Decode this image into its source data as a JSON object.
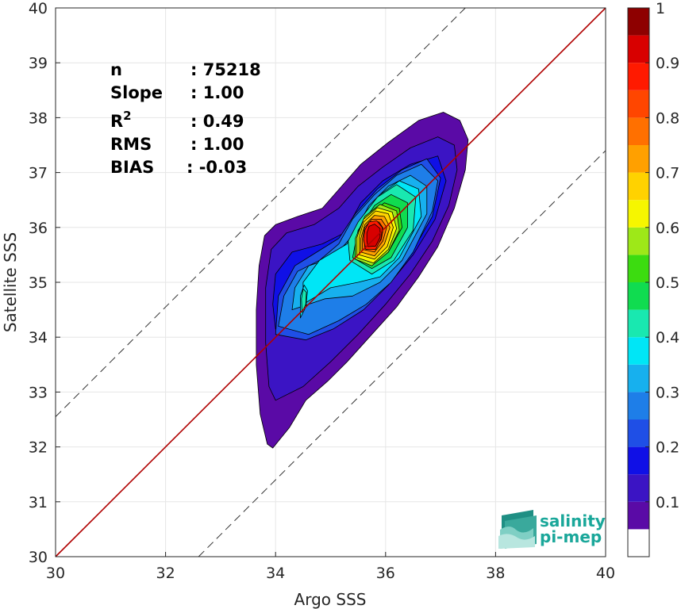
{
  "chart_data": {
    "type": "heatmap",
    "subtype": "filled-contour density scatter",
    "xlabel": "Argo SSS",
    "ylabel": "Satellite SSS",
    "xlim": [
      30,
      40
    ],
    "ylim": [
      30,
      40
    ],
    "xticks": [
      30,
      32,
      34,
      36,
      38,
      40
    ],
    "yticks": [
      30,
      31,
      32,
      33,
      34,
      35,
      36,
      37,
      38,
      39,
      40
    ],
    "grid": true,
    "one_to_one_line": {
      "color": "#b00000",
      "from": [
        30,
        30
      ],
      "to": [
        40,
        40
      ]
    },
    "dashed_offset_lines": [
      {
        "from": [
          30,
          32.55
        ],
        "to": [
          37.45,
          40
        ]
      },
      {
        "from": [
          32.6,
          30
        ],
        "to": [
          40,
          37.4
        ]
      }
    ],
    "stats": [
      {
        "label": "n",
        "value": ": 75218"
      },
      {
        "label": "Slope",
        "value": ": 1.00"
      },
      {
        "label": "R",
        "sup": "2",
        "value": ": 0.49"
      },
      {
        "label": "RMS",
        "value": ": 1.00"
      },
      {
        "label": "BIAS",
        "value": ": -0.03"
      }
    ],
    "colorbar": {
      "ticks": [
        "0.1",
        "0.2",
        "0.3",
        "0.4",
        "0.5",
        "0.6",
        "0.7",
        "0.8",
        "0.9",
        "1"
      ],
      "levels": [
        {
          "from": 0.0,
          "to": 0.05,
          "color": "#ffffff"
        },
        {
          "from": 0.05,
          "to": 0.1,
          "color": "#5a0aa6"
        },
        {
          "from": 0.1,
          "to": 0.15,
          "color": "#3b14c4"
        },
        {
          "from": 0.15,
          "to": 0.2,
          "color": "#1010e6"
        },
        {
          "from": 0.2,
          "to": 0.25,
          "color": "#1f4fe6"
        },
        {
          "from": 0.25,
          "to": 0.3,
          "color": "#1e7ee8"
        },
        {
          "from": 0.3,
          "to": 0.35,
          "color": "#17b0ee"
        },
        {
          "from": 0.35,
          "to": 0.4,
          "color": "#00e6f6"
        },
        {
          "from": 0.4,
          "to": 0.45,
          "color": "#19e8b0"
        },
        {
          "from": 0.45,
          "to": 0.5,
          "color": "#10dc50"
        },
        {
          "from": 0.5,
          "to": 0.55,
          "color": "#3cdc10"
        },
        {
          "from": 0.55,
          "to": 0.6,
          "color": "#9ee818"
        },
        {
          "from": 0.6,
          "to": 0.65,
          "color": "#f6f600"
        },
        {
          "from": 0.65,
          "to": 0.7,
          "color": "#ffd200"
        },
        {
          "from": 0.7,
          "to": 0.75,
          "color": "#ffa000"
        },
        {
          "from": 0.75,
          "to": 0.8,
          "color": "#ff7000"
        },
        {
          "from": 0.8,
          "to": 0.85,
          "color": "#ff4600"
        },
        {
          "from": 0.85,
          "to": 0.9,
          "color": "#ff1a00"
        },
        {
          "from": 0.9,
          "to": 0.95,
          "color": "#d80000"
        },
        {
          "from": 0.95,
          "to": 1.0,
          "color": "#8e0000"
        }
      ]
    },
    "density_contours": [
      {
        "level": 0.05,
        "points": [
          [
            33.95,
            31.98
          ],
          [
            34.25,
            32.35
          ],
          [
            34.55,
            32.85
          ],
          [
            34.95,
            33.2
          ],
          [
            35.3,
            33.55
          ],
          [
            35.75,
            34.05
          ],
          [
            36.2,
            34.55
          ],
          [
            36.6,
            35.1
          ],
          [
            36.95,
            35.65
          ],
          [
            37.25,
            36.35
          ],
          [
            37.45,
            37.05
          ],
          [
            37.5,
            37.6
          ],
          [
            37.35,
            37.95
          ],
          [
            37.05,
            38.1
          ],
          [
            36.6,
            37.95
          ],
          [
            36.05,
            37.55
          ],
          [
            35.55,
            37.15
          ],
          [
            35.2,
            36.75
          ],
          [
            34.85,
            36.35
          ],
          [
            34.4,
            36.2
          ],
          [
            34.0,
            36.05
          ],
          [
            33.8,
            35.85
          ],
          [
            33.7,
            35.3
          ],
          [
            33.65,
            34.5
          ],
          [
            33.65,
            33.5
          ],
          [
            33.72,
            32.6
          ],
          [
            33.85,
            32.05
          ]
        ]
      },
      {
        "level": 0.1,
        "points": [
          [
            34.0,
            32.85
          ],
          [
            34.5,
            33.1
          ],
          [
            35.0,
            33.55
          ],
          [
            35.5,
            34.05
          ],
          [
            36.0,
            34.6
          ],
          [
            36.45,
            35.15
          ],
          [
            36.85,
            35.75
          ],
          [
            37.15,
            36.4
          ],
          [
            37.3,
            37.05
          ],
          [
            37.25,
            37.5
          ],
          [
            36.95,
            37.65
          ],
          [
            36.45,
            37.45
          ],
          [
            35.95,
            37.1
          ],
          [
            35.5,
            36.75
          ],
          [
            35.15,
            36.35
          ],
          [
            34.7,
            36.05
          ],
          [
            34.2,
            35.9
          ],
          [
            33.92,
            35.6
          ],
          [
            33.82,
            34.9
          ],
          [
            33.82,
            33.9
          ],
          [
            33.88,
            33.1
          ]
        ]
      },
      {
        "level": 0.15,
        "points": [
          [
            34.0,
            34.15
          ],
          [
            34.55,
            34.05
          ],
          [
            35.0,
            34.2
          ],
          [
            35.55,
            34.5
          ],
          [
            36.05,
            34.95
          ],
          [
            36.5,
            35.5
          ],
          [
            36.9,
            36.15
          ],
          [
            37.1,
            36.85
          ],
          [
            36.95,
            37.3
          ],
          [
            36.45,
            37.15
          ],
          [
            35.95,
            36.85
          ],
          [
            35.55,
            36.45
          ],
          [
            35.25,
            35.9
          ],
          [
            34.85,
            35.7
          ],
          [
            34.3,
            35.55
          ],
          [
            34.0,
            35.15
          ],
          [
            33.95,
            34.6
          ]
        ]
      },
      {
        "level": 0.2,
        "points": [
          [
            34.0,
            34.05
          ],
          [
            34.55,
            33.95
          ],
          [
            35.05,
            34.15
          ],
          [
            35.6,
            34.5
          ],
          [
            36.05,
            34.95
          ],
          [
            36.45,
            35.5
          ],
          [
            36.85,
            36.2
          ],
          [
            37.0,
            36.9
          ],
          [
            36.75,
            37.25
          ],
          [
            36.3,
            37.05
          ],
          [
            35.85,
            36.7
          ],
          [
            35.45,
            36.25
          ],
          [
            35.15,
            35.8
          ],
          [
            34.75,
            35.55
          ],
          [
            34.35,
            35.3
          ],
          [
            34.05,
            34.75
          ]
        ]
      },
      {
        "level": 0.25,
        "points": [
          [
            34.05,
            34.2
          ],
          [
            34.6,
            34.05
          ],
          [
            35.15,
            34.3
          ],
          [
            35.65,
            34.6
          ],
          [
            36.1,
            35.0
          ],
          [
            36.5,
            35.55
          ],
          [
            36.85,
            36.3
          ],
          [
            36.95,
            36.85
          ],
          [
            36.65,
            37.15
          ],
          [
            36.2,
            36.95
          ],
          [
            35.8,
            36.6
          ],
          [
            35.4,
            36.15
          ],
          [
            35.15,
            35.7
          ],
          [
            34.8,
            35.4
          ],
          [
            34.4,
            35.2
          ],
          [
            34.15,
            34.75
          ]
        ]
      },
      {
        "level": 0.3,
        "points": [
          [
            34.3,
            34.5
          ],
          [
            34.9,
            34.7
          ],
          [
            35.4,
            34.75
          ],
          [
            35.9,
            35.0
          ],
          [
            36.3,
            35.4
          ],
          [
            36.75,
            36.25
          ],
          [
            36.75,
            36.75
          ],
          [
            36.45,
            36.95
          ],
          [
            36.05,
            36.75
          ],
          [
            35.7,
            36.4
          ],
          [
            35.4,
            35.85
          ],
          [
            35.05,
            35.45
          ],
          [
            34.6,
            35.3
          ],
          [
            34.35,
            34.9
          ]
        ]
      },
      {
        "level": 0.35,
        "points": [
          [
            34.5,
            34.6
          ],
          [
            35.0,
            34.9
          ],
          [
            35.5,
            35.0
          ],
          [
            35.9,
            35.1
          ],
          [
            36.25,
            35.45
          ],
          [
            36.65,
            36.2
          ],
          [
            36.6,
            36.7
          ],
          [
            36.25,
            36.85
          ],
          [
            35.9,
            36.6
          ],
          [
            35.55,
            36.15
          ],
          [
            35.3,
            35.7
          ],
          [
            34.8,
            35.4
          ],
          [
            34.5,
            35.0
          ]
        ]
      },
      {
        "level": 0.4,
        "points": [
          [
            35.35,
            35.4
          ],
          [
            35.75,
            35.15
          ],
          [
            36.15,
            35.4
          ],
          [
            36.5,
            35.95
          ],
          [
            36.55,
            36.55
          ],
          [
            36.2,
            36.78
          ],
          [
            35.85,
            36.55
          ],
          [
            35.5,
            36.1
          ],
          [
            35.32,
            35.75
          ]
        ]
      },
      {
        "level": 0.45,
        "points": [
          [
            35.4,
            35.45
          ],
          [
            35.75,
            35.25
          ],
          [
            36.1,
            35.45
          ],
          [
            36.4,
            36.0
          ],
          [
            36.4,
            36.45
          ],
          [
            36.1,
            36.6
          ],
          [
            35.8,
            36.4
          ],
          [
            35.5,
            35.95
          ]
        ]
      },
      {
        "level": 0.5,
        "points": [
          [
            35.45,
            35.5
          ],
          [
            35.78,
            35.35
          ],
          [
            36.05,
            35.55
          ],
          [
            36.3,
            36.0
          ],
          [
            36.25,
            36.35
          ],
          [
            35.98,
            36.45
          ],
          [
            35.72,
            36.25
          ],
          [
            35.5,
            35.88
          ]
        ]
      },
      {
        "level": 0.55,
        "points": [
          [
            35.45,
            35.42
          ],
          [
            35.75,
            35.3
          ],
          [
            36.05,
            35.55
          ],
          [
            36.25,
            35.95
          ],
          [
            36.2,
            36.3
          ],
          [
            35.9,
            36.42
          ],
          [
            35.62,
            36.2
          ],
          [
            35.45,
            35.8
          ]
        ]
      },
      {
        "level": 0.6,
        "points": [
          [
            35.48,
            35.45
          ],
          [
            35.78,
            35.35
          ],
          [
            36.05,
            35.6
          ],
          [
            36.2,
            35.98
          ],
          [
            36.12,
            36.28
          ],
          [
            35.85,
            36.36
          ],
          [
            35.6,
            36.15
          ],
          [
            35.48,
            35.82
          ]
        ]
      },
      {
        "level": 0.65,
        "points": [
          [
            35.52,
            35.5
          ],
          [
            35.8,
            35.42
          ],
          [
            36.03,
            35.65
          ],
          [
            36.14,
            36.0
          ],
          [
            36.05,
            36.25
          ],
          [
            35.82,
            36.3
          ],
          [
            35.6,
            36.1
          ],
          [
            35.52,
            35.82
          ]
        ]
      },
      {
        "level": 0.7,
        "points": [
          [
            35.55,
            35.55
          ],
          [
            35.8,
            35.48
          ],
          [
            35.98,
            35.7
          ],
          [
            36.08,
            36.0
          ],
          [
            35.98,
            36.2
          ],
          [
            35.8,
            36.22
          ],
          [
            35.62,
            36.05
          ],
          [
            35.55,
            35.8
          ]
        ]
      },
      {
        "level": 0.75,
        "points": [
          [
            35.58,
            35.6
          ],
          [
            35.8,
            35.55
          ],
          [
            35.95,
            35.75
          ],
          [
            36.02,
            36.0
          ],
          [
            35.92,
            36.15
          ],
          [
            35.75,
            36.15
          ],
          [
            35.62,
            36.0
          ],
          [
            35.58,
            35.8
          ]
        ]
      },
      {
        "level": 0.8,
        "points": [
          [
            35.62,
            35.62
          ],
          [
            35.8,
            35.6
          ],
          [
            35.92,
            35.78
          ],
          [
            35.96,
            35.98
          ],
          [
            35.88,
            36.1
          ],
          [
            35.74,
            36.1
          ],
          [
            35.64,
            35.95
          ],
          [
            35.62,
            35.78
          ]
        ]
      },
      {
        "level": 0.85,
        "points": [
          [
            35.64,
            35.6
          ],
          [
            35.82,
            35.6
          ],
          [
            35.92,
            35.8
          ],
          [
            35.94,
            36.0
          ],
          [
            35.84,
            36.12
          ],
          [
            35.7,
            36.1
          ],
          [
            35.62,
            35.95
          ],
          [
            35.6,
            35.78
          ]
        ]
      },
      {
        "level": 0.9,
        "points": [
          [
            35.68,
            35.65
          ],
          [
            35.82,
            35.66
          ],
          [
            35.9,
            35.82
          ],
          [
            35.9,
            35.98
          ],
          [
            35.8,
            36.06
          ],
          [
            35.7,
            36.02
          ],
          [
            35.66,
            35.9
          ],
          [
            35.66,
            35.75
          ]
        ]
      },
      {
        "level": 0.35,
        "points": [
          [
            34.45,
            34.35
          ],
          [
            34.55,
            34.55
          ],
          [
            34.58,
            34.85
          ],
          [
            34.52,
            34.95
          ],
          [
            34.45,
            34.75
          ],
          [
            34.45,
            34.5
          ]
        ]
      },
      {
        "level": 0.4,
        "points": [
          [
            34.48,
            34.45
          ],
          [
            34.55,
            34.6
          ],
          [
            34.56,
            34.82
          ],
          [
            34.5,
            34.88
          ],
          [
            34.47,
            34.7
          ]
        ]
      }
    ]
  },
  "logo": {
    "line1": "salinity",
    "line2": "pi-mep"
  }
}
